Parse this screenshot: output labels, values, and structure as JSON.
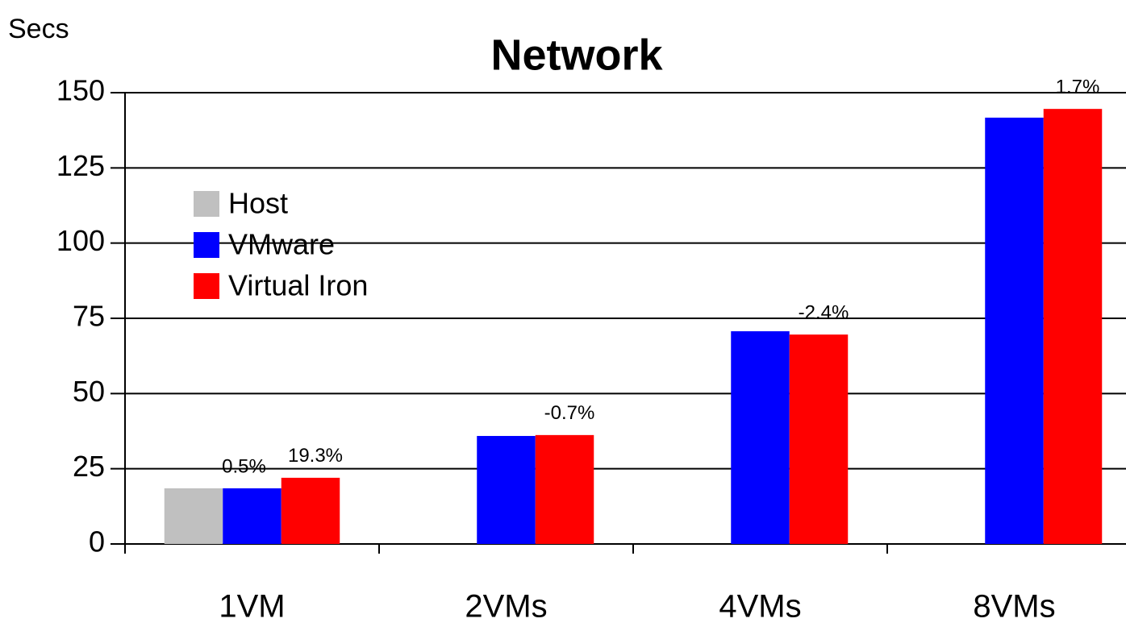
{
  "chart_data": {
    "type": "bar",
    "title": "Network",
    "ylabel": "Secs",
    "categories": [
      "1VM",
      "2VMs",
      "4VMs",
      "8VMs"
    ],
    "series": [
      {
        "name": "Host",
        "color": "#c0c0c0",
        "values": [
          18.5,
          null,
          null,
          null
        ]
      },
      {
        "name": "VMware",
        "color": "#0000ff",
        "values": [
          18.5,
          35.9,
          70.7,
          141.7
        ],
        "annotations": [
          "0.5%",
          null,
          null,
          null
        ]
      },
      {
        "name": "Virtual Iron",
        "color": "#ff0000",
        "values": [
          22.0,
          36.2,
          69.6,
          144.6
        ],
        "annotations": [
          "19.3%",
          "-0.7%",
          "-2.4%",
          "1.7%"
        ]
      }
    ],
    "ylim": [
      0,
      150
    ],
    "yticks": [
      0,
      25,
      50,
      75,
      100,
      125,
      150
    ],
    "grid": true,
    "legend": "upper left"
  }
}
